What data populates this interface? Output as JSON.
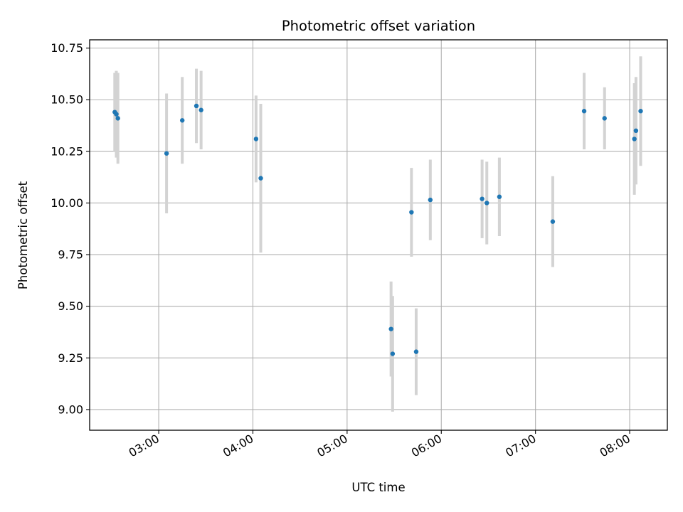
{
  "chart_data": {
    "type": "scatter",
    "title": "Photometric offset variation",
    "xlabel": "UTC time",
    "ylabel": "Photometric offset",
    "x_unit": "UTC",
    "xlim": [
      "02:16",
      "08:24"
    ],
    "ylim": [
      8.9,
      10.79
    ],
    "grid": true,
    "x_ticks": [
      "03:00",
      "04:00",
      "05:00",
      "06:00",
      "07:00",
      "08:00"
    ],
    "y_ticks": [
      "9.00",
      "9.25",
      "9.50",
      "9.75",
      "10.00",
      "10.25",
      "10.50",
      "10.75"
    ],
    "colors": {
      "point": "#1f77b4",
      "errorbar": "#d3d3d3",
      "grid": "#b0b0b0"
    },
    "points": [
      {
        "x": "02:32",
        "y": 10.44,
        "err": 0.19
      },
      {
        "x": "02:33",
        "y": 10.43,
        "err": 0.21
      },
      {
        "x": "02:34",
        "y": 10.41,
        "err": 0.22
      },
      {
        "x": "03:05",
        "y": 10.24,
        "err": 0.29
      },
      {
        "x": "03:15",
        "y": 10.4,
        "err": 0.21
      },
      {
        "x": "03:24",
        "y": 10.47,
        "err": 0.18
      },
      {
        "x": "03:27",
        "y": 10.45,
        "err": 0.19
      },
      {
        "x": "04:02",
        "y": 10.31,
        "err": 0.21
      },
      {
        "x": "04:05",
        "y": 10.12,
        "err": 0.36
      },
      {
        "x": "05:28",
        "y": 9.39,
        "err": 0.23
      },
      {
        "x": "05:29",
        "y": 9.27,
        "err": 0.28
      },
      {
        "x": "05:41",
        "y": 9.955,
        "err": 0.215
      },
      {
        "x": "05:44",
        "y": 9.28,
        "err": 0.21
      },
      {
        "x": "05:53",
        "y": 10.015,
        "err": 0.195
      },
      {
        "x": "06:26",
        "y": 10.02,
        "err": 0.19
      },
      {
        "x": "06:29",
        "y": 10.0,
        "err": 0.2
      },
      {
        "x": "06:37",
        "y": 10.03,
        "err": 0.19
      },
      {
        "x": "07:11",
        "y": 9.91,
        "err": 0.22
      },
      {
        "x": "07:31",
        "y": 10.445,
        "err": 0.185
      },
      {
        "x": "07:44",
        "y": 10.41,
        "err": 0.15
      },
      {
        "x": "08:03",
        "y": 10.31,
        "err": 0.27
      },
      {
        "x": "08:04",
        "y": 10.35,
        "err": 0.26
      },
      {
        "x": "08:07",
        "y": 10.445,
        "err": 0.265
      }
    ]
  }
}
